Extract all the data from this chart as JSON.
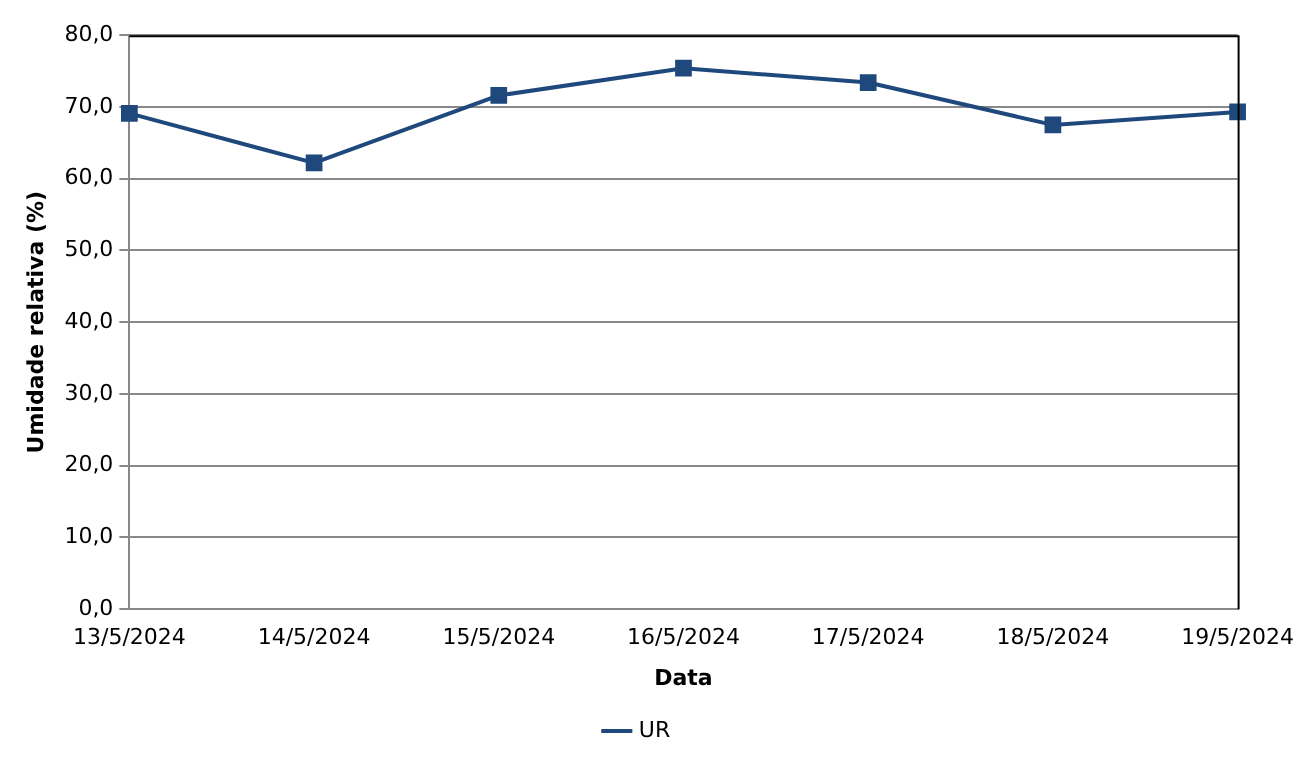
{
  "chart_data": {
    "type": "line",
    "xlabel": "Data",
    "ylabel": "Umidade relativa (%)",
    "categories": [
      "13/5/2024",
      "14/5/2024",
      "15/5/2024",
      "16/5/2024",
      "17/5/2024",
      "18/5/2024",
      "19/5/2024"
    ],
    "series": [
      {
        "name": "UR",
        "color": "#1f497d",
        "values": [
          69.1,
          62.2,
          71.6,
          75.4,
          73.4,
          67.5,
          69.3
        ]
      }
    ],
    "ylim": [
      0,
      80
    ],
    "yticks": [
      {
        "value": 0,
        "label": "0,0"
      },
      {
        "value": 10,
        "label": "10,0"
      },
      {
        "value": 20,
        "label": "20,0"
      },
      {
        "value": 30,
        "label": "30,0"
      },
      {
        "value": 40,
        "label": "40,0"
      },
      {
        "value": 50,
        "label": "50,0"
      },
      {
        "value": 60,
        "label": "60,0"
      },
      {
        "value": 70,
        "label": "70,0"
      },
      {
        "value": 80,
        "label": "80,0"
      }
    ],
    "grid": "y",
    "legend": "bottom",
    "marker": "square",
    "line_style": "solid"
  }
}
